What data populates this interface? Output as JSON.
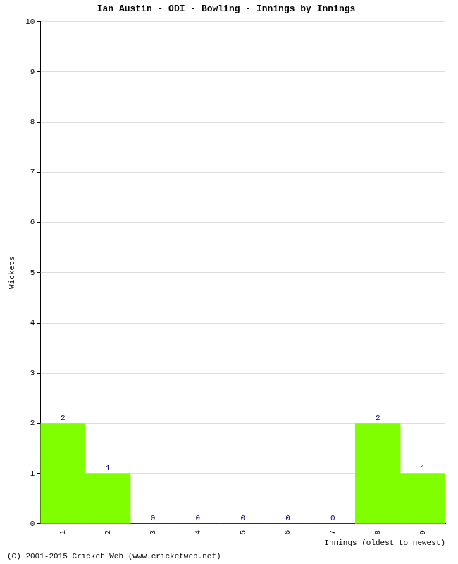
{
  "chart_data": {
    "type": "bar",
    "title": "Ian Austin - ODI - Bowling - Innings by Innings",
    "x_label": "Innings (oldest to newest)",
    "y_label": "Wickets",
    "categories": [
      "1",
      "2",
      "3",
      "4",
      "5",
      "6",
      "7",
      "8",
      "9"
    ],
    "values": [
      2,
      1,
      0,
      0,
      0,
      0,
      0,
      2,
      1
    ],
    "color": "#80ff00",
    "ylim": [
      0,
      10
    ],
    "yticks": [
      0,
      1,
      2,
      3,
      4,
      5,
      6,
      7,
      8,
      9,
      10
    ],
    "grid": true,
    "data_labels": true,
    "annotations": [
      "(C) 2001-2015 Cricket Web (www.cricketweb.net)"
    ]
  }
}
